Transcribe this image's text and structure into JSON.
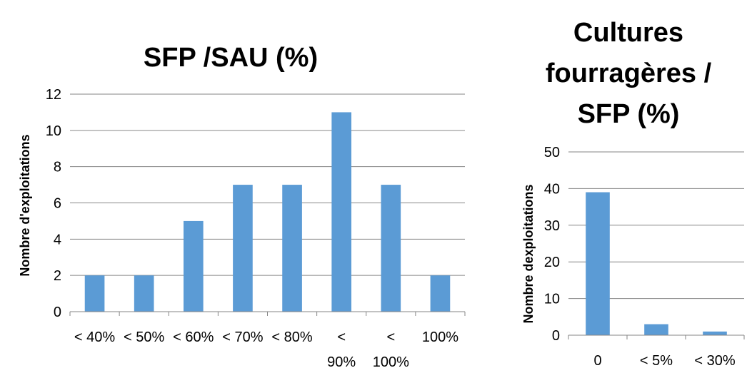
{
  "chart_data": [
    {
      "type": "bar",
      "title": "SFP /SAU (%)",
      "xlabel": "",
      "ylabel": "Nombre d'exploitations",
      "categories": [
        [
          "< 40%"
        ],
        [
          "< 50%"
        ],
        [
          "< 60%"
        ],
        [
          "< 70%"
        ],
        [
          "< 80%"
        ],
        [
          "<",
          "90%"
        ],
        [
          "<",
          "100%"
        ],
        [
          "100%"
        ]
      ],
      "values": [
        2,
        2,
        5,
        7,
        7,
        11,
        7,
        2
      ],
      "ylim": [
        0,
        12
      ],
      "yticks": [
        0,
        2,
        4,
        6,
        8,
        10,
        12
      ],
      "grid": true,
      "bar_color": "#5B9BD5"
    },
    {
      "type": "bar",
      "title": "Cultures fourragères / SFP (%)",
      "title_lines": [
        "Cultures",
        "fourragères /",
        "SFP (%)"
      ],
      "xlabel": "",
      "ylabel": "Nombre dexploitations",
      "categories": [
        [
          "0"
        ],
        [
          "< 5%"
        ],
        [
          "< 30%"
        ]
      ],
      "values": [
        39,
        3,
        1
      ],
      "ylim": [
        0,
        50
      ],
      "yticks": [
        0,
        10,
        20,
        30,
        40,
        50
      ],
      "grid": true,
      "bar_color": "#5B9BD5"
    }
  ]
}
